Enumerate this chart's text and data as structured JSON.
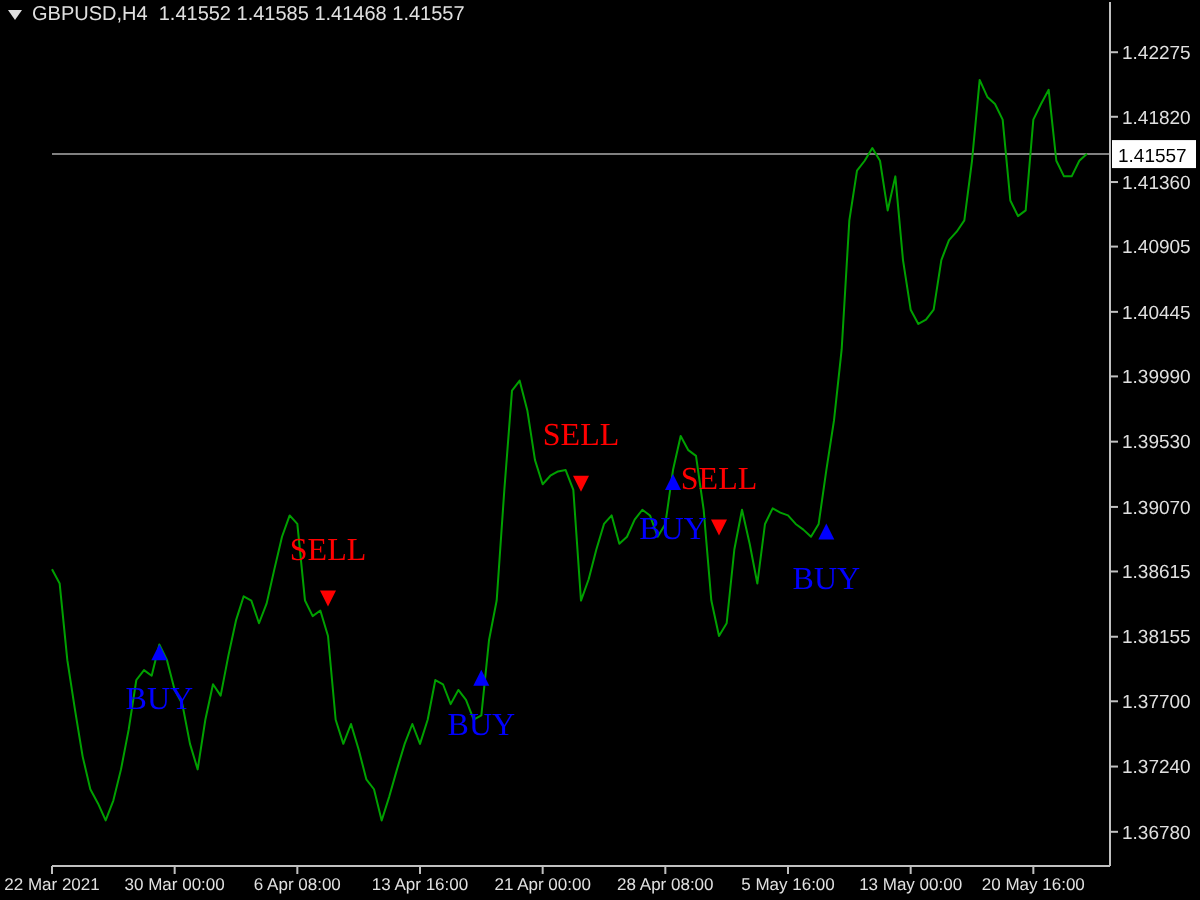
{
  "chart_data": {
    "type": "line",
    "title": "GBPUSD,H4  1.41552 1.41585 1.41468 1.41557",
    "categories": [
      "22 Mar 2021",
      null,
      null,
      null,
      null,
      null,
      null,
      null,
      null,
      null,
      null,
      null,
      null,
      null,
      null,
      null,
      "30 Mar 00:00",
      null,
      null,
      null,
      null,
      null,
      null,
      null,
      null,
      null,
      null,
      null,
      null,
      null,
      null,
      null,
      "6 Apr 08:00",
      null,
      null,
      null,
      null,
      null,
      null,
      null,
      null,
      null,
      null,
      null,
      null,
      null,
      null,
      null,
      "13 Apr 16:00",
      null,
      null,
      null,
      null,
      null,
      null,
      null,
      null,
      null,
      null,
      null,
      null,
      null,
      null,
      null,
      "21 Apr 00:00",
      null,
      null,
      null,
      null,
      null,
      null,
      null,
      null,
      null,
      null,
      null,
      null,
      null,
      null,
      null,
      "28 Apr 08:00",
      null,
      null,
      null,
      null,
      null,
      null,
      null,
      null,
      null,
      null,
      null,
      null,
      null,
      null,
      null,
      "5 May 16:00",
      null,
      null,
      null,
      null,
      null,
      null,
      null,
      null,
      null,
      null,
      null,
      null,
      null,
      null,
      null,
      "13 May 00:00",
      null,
      null,
      null,
      null,
      null,
      null,
      null,
      null,
      null,
      null,
      null,
      null,
      null,
      null,
      null,
      "20 May 16:00",
      null,
      null,
      null,
      null,
      null,
      null,
      null,
      null,
      null,
      null
    ],
    "series": [
      {
        "type": "line",
        "color": "#00a000",
        "marker": "none",
        "values": [
          1.3863,
          1.3853,
          1.3799,
          1.3764,
          1.3731,
          1.3708,
          1.3698,
          1.3686,
          1.37,
          1.3722,
          1.375,
          1.3785,
          1.3792,
          1.3788,
          1.381,
          1.3799,
          1.3778,
          1.3768,
          1.374,
          1.3722,
          1.3757,
          1.3782,
          1.3774,
          1.3802,
          1.3827,
          1.3844,
          1.3841,
          1.3825,
          1.3839,
          1.3863,
          1.3886,
          1.3901,
          1.3895,
          1.3841,
          1.383,
          1.3834,
          1.3816,
          1.3757,
          1.374,
          1.3754,
          1.3736,
          1.3715,
          1.3708,
          1.3686,
          1.3703,
          1.3722,
          1.374,
          1.3754,
          1.374,
          1.3757,
          1.3785,
          1.3782,
          1.3768,
          1.3778,
          1.3771,
          1.3757,
          1.376,
          1.3813,
          1.3841,
          1.3919,
          1.3989,
          1.3996,
          1.3975,
          1.394,
          1.3923,
          1.3929,
          1.3932,
          1.3933,
          1.3919,
          1.3841,
          1.3856,
          1.3877,
          1.3895,
          1.3901,
          1.3881,
          1.3886,
          1.3898,
          1.3905,
          1.3901,
          1.3886,
          1.3895,
          1.3933,
          1.3957,
          1.3947,
          1.3943,
          1.3905,
          1.3841,
          1.3816,
          1.3825,
          1.3877,
          1.3905,
          1.3881,
          1.3853,
          1.3895,
          1.3906,
          1.3903,
          1.3901,
          1.3895,
          1.3891,
          1.3886,
          1.3895,
          1.3933,
          1.3968,
          1.4018,
          1.4109,
          1.4144,
          1.4151,
          1.416,
          1.4151,
          1.4116,
          1.414,
          1.4081,
          1.4046,
          1.4036,
          1.4039,
          1.4046,
          1.4081,
          1.4095,
          1.4101,
          1.4109,
          1.4151,
          1.4208,
          1.4196,
          1.4191,
          1.418,
          1.4123,
          1.4112,
          1.4116,
          1.418,
          1.4191,
          1.4201,
          1.4151,
          1.414,
          1.414,
          1.4151,
          1.4156,
          null,
          null,
          null
        ]
      },
      {
        "type": "scatter",
        "color": "#0000ff",
        "marker": "triangle",
        "values": [
          null,
          null,
          null,
          null,
          null,
          null,
          null,
          null,
          null,
          null,
          null,
          null,
          null,
          null,
          1.3806,
          null,
          null,
          null,
          null,
          null,
          null,
          null,
          null,
          null,
          null,
          null,
          null,
          null,
          null,
          null,
          null,
          null,
          null,
          null,
          null,
          null,
          null,
          null,
          null,
          null,
          null,
          null,
          null,
          null,
          null,
          null,
          null,
          null,
          null,
          null,
          null,
          null,
          null,
          null,
          null,
          null,
          1.3788,
          null,
          null,
          null,
          null,
          null,
          null,
          null,
          null,
          null,
          null,
          null,
          null,
          null,
          null,
          null,
          null,
          null,
          null,
          null,
          null,
          null,
          null,
          null,
          null,
          1.3926,
          null,
          null,
          null,
          null,
          null,
          null,
          null,
          null,
          null,
          null,
          null,
          null,
          null,
          null,
          null,
          null,
          null,
          null,
          null,
          1.3891,
          null,
          null,
          null,
          null,
          null,
          null,
          null,
          null,
          null,
          null,
          null,
          null,
          null,
          null,
          null,
          null,
          null,
          null,
          null,
          null,
          null,
          null,
          null,
          null,
          null,
          null,
          null,
          null,
          null,
          null,
          null,
          null,
          null,
          null,
          null,
          null,
          null
        ],
        "value_labels": [
          null,
          null,
          null,
          null,
          null,
          null,
          null,
          null,
          null,
          null,
          null,
          null,
          null,
          null,
          "BUY",
          null,
          null,
          null,
          null,
          null,
          null,
          null,
          null,
          null,
          null,
          null,
          null,
          null,
          null,
          null,
          null,
          null,
          null,
          null,
          null,
          null,
          null,
          null,
          null,
          null,
          null,
          null,
          null,
          null,
          null,
          null,
          null,
          null,
          null,
          null,
          null,
          null,
          null,
          null,
          null,
          null,
          "BUY",
          null,
          null,
          null,
          null,
          null,
          null,
          null,
          null,
          null,
          null,
          null,
          null,
          null,
          null,
          null,
          null,
          null,
          null,
          null,
          null,
          null,
          null,
          null,
          null,
          "BUY",
          null,
          null,
          null,
          null,
          null,
          null,
          null,
          null,
          null,
          null,
          null,
          null,
          null,
          null,
          null,
          null,
          null,
          null,
          null,
          "BUY",
          null,
          null,
          null,
          null,
          null,
          null,
          null,
          null,
          null,
          null,
          null,
          null,
          null,
          null,
          null,
          null,
          null,
          null,
          null,
          null,
          null,
          null,
          null,
          null,
          null,
          null,
          null,
          null,
          null,
          null,
          null,
          null,
          null,
          null,
          null,
          null,
          null
        ]
      },
      {
        "type": "scatter",
        "color": "#ff0000",
        "marker": "triangle",
        "values": [
          null,
          null,
          null,
          null,
          null,
          null,
          null,
          null,
          null,
          null,
          null,
          null,
          null,
          null,
          null,
          null,
          null,
          null,
          null,
          null,
          null,
          null,
          null,
          null,
          null,
          null,
          null,
          null,
          null,
          null,
          null,
          null,
          null,
          null,
          null,
          null,
          1.3841,
          null,
          null,
          null,
          null,
          null,
          null,
          null,
          null,
          null,
          null,
          null,
          null,
          null,
          null,
          null,
          null,
          null,
          null,
          null,
          null,
          null,
          null,
          null,
          null,
          null,
          null,
          null,
          null,
          null,
          null,
          null,
          null,
          1.3922,
          null,
          null,
          null,
          null,
          null,
          null,
          null,
          null,
          null,
          null,
          null,
          null,
          null,
          null,
          null,
          null,
          null,
          1.3891,
          null,
          null,
          null,
          null,
          null,
          null,
          null,
          null,
          null,
          null,
          null,
          null,
          null,
          null,
          null,
          null,
          null,
          null,
          null,
          null,
          null,
          null,
          null,
          null,
          null,
          null,
          null,
          null,
          null,
          null,
          null,
          null,
          null,
          null,
          null,
          null,
          null,
          null,
          null,
          null,
          null,
          null,
          null,
          null,
          null,
          null,
          null,
          null,
          null,
          null,
          null
        ],
        "value_labels": [
          null,
          null,
          null,
          null,
          null,
          null,
          null,
          null,
          null,
          null,
          null,
          null,
          null,
          null,
          null,
          null,
          null,
          null,
          null,
          null,
          null,
          null,
          null,
          null,
          null,
          null,
          null,
          null,
          null,
          null,
          null,
          null,
          null,
          null,
          null,
          null,
          "SELL",
          null,
          null,
          null,
          null,
          null,
          null,
          null,
          null,
          null,
          null,
          null,
          null,
          null,
          null,
          null,
          null,
          null,
          null,
          null,
          null,
          null,
          null,
          null,
          null,
          null,
          null,
          null,
          null,
          null,
          null,
          null,
          null,
          "SELL",
          null,
          null,
          null,
          null,
          null,
          null,
          null,
          null,
          null,
          null,
          null,
          null,
          null,
          null,
          null,
          null,
          null,
          "SELL",
          null,
          null,
          null,
          null,
          null,
          null,
          null,
          null,
          null,
          null,
          null,
          null,
          null,
          null,
          null,
          null,
          null,
          null,
          null,
          null,
          null,
          null,
          null,
          null,
          null,
          null,
          null,
          null,
          null,
          null,
          null,
          null,
          null,
          null,
          null,
          null,
          null,
          null,
          null,
          null,
          null,
          null,
          null,
          null,
          null,
          null,
          null,
          null,
          null,
          null,
          null
        ]
      }
    ],
    "ylim": [
      1.36539,
      1.42629
    ],
    "yticks": [
      {
        "value": 1.3678,
        "label": "1.36780"
      },
      {
        "value": 1.3724,
        "label": "1.37240"
      },
      {
        "value": 1.377,
        "label": "1.37700"
      },
      1.38155,
      1.38615,
      {
        "value": 1.3907,
        "label": "1.39070"
      },
      {
        "value": 1.3953,
        "label": "1.39530"
      },
      {
        "value": 1.3999,
        "label": "1.39990"
      },
      1.40445,
      1.40905,
      {
        "value": 1.4136,
        "label": "1.41360"
      },
      {
        "value": 1.4182,
        "label": "1.41820"
      },
      1.42275
    ],
    "ref_lines": [
      {
        "axis": "y",
        "value": 1.41557,
        "label": "1.41557",
        "color": "#808080"
      }
    ]
  }
}
